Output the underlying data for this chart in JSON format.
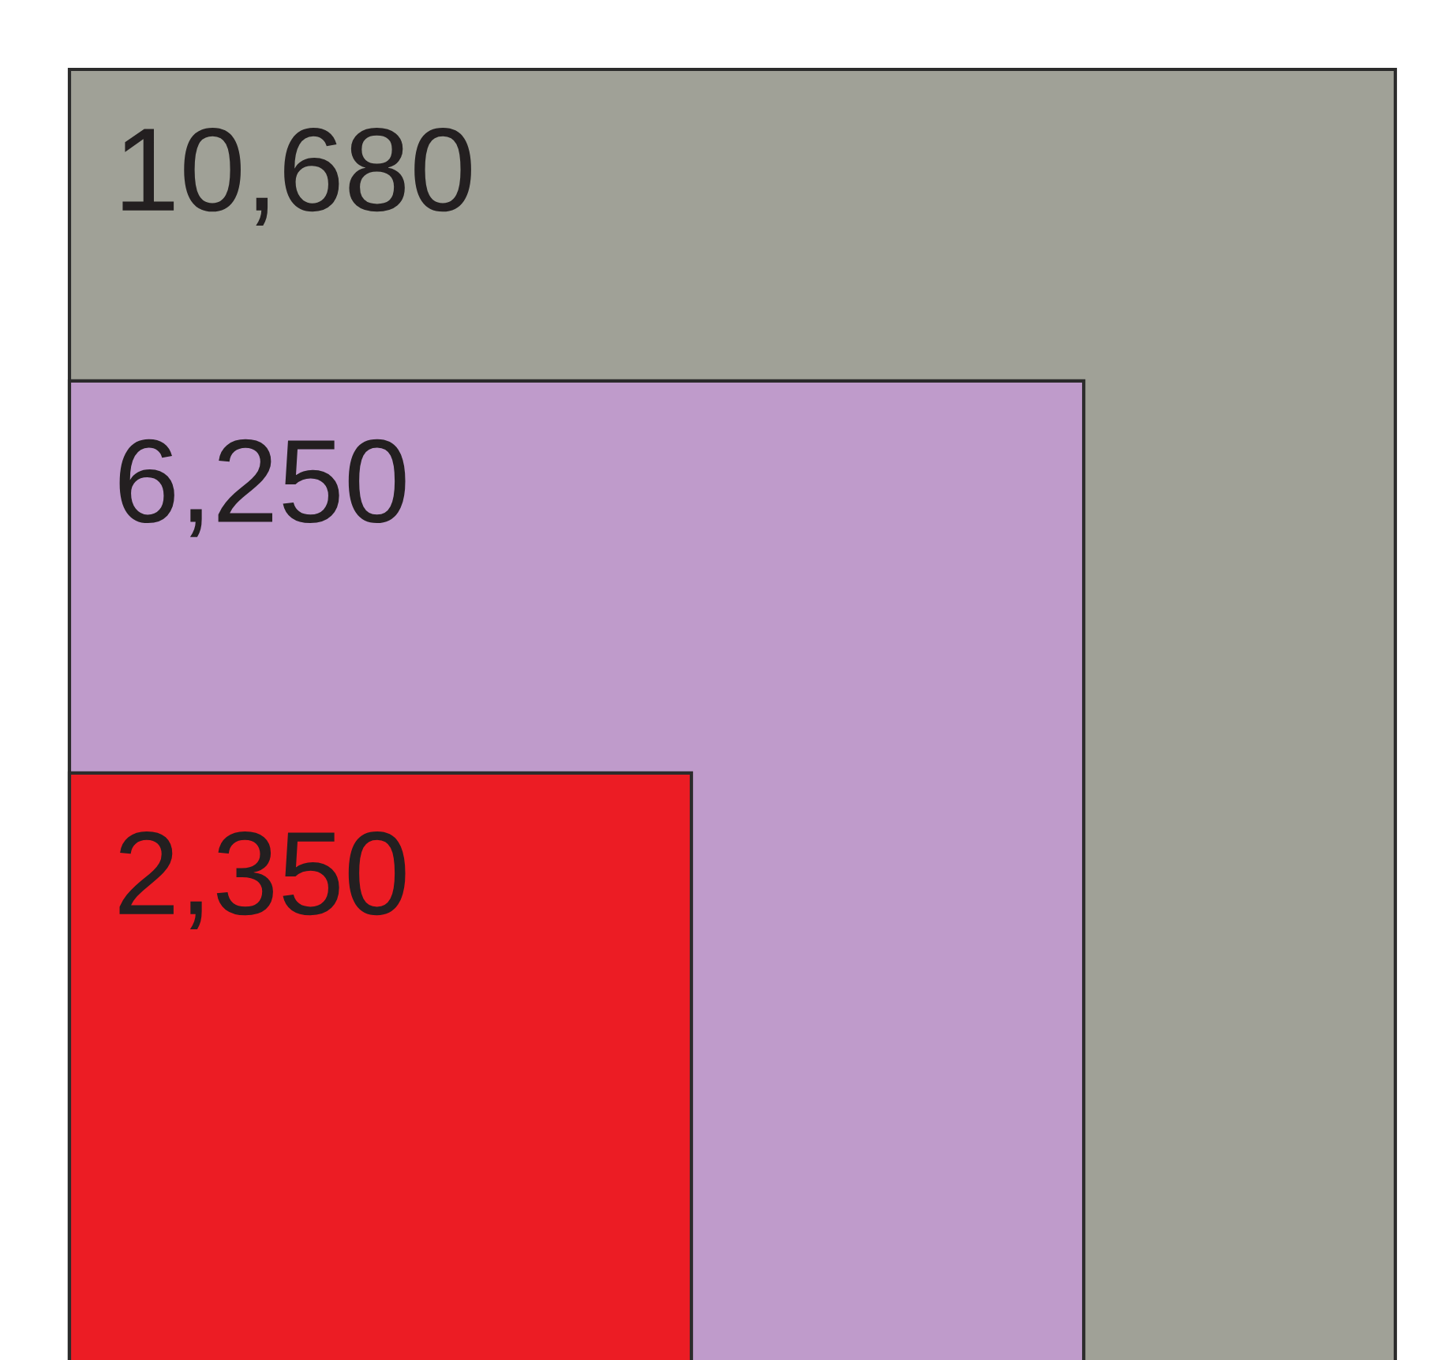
{
  "chart_data": {
    "type": "other",
    "values": [
      10680,
      6250,
      2350
    ],
    "colors": [
      "#a0a197",
      "#bf9bcb",
      "#ec1c24"
    ],
    "value_labels": [
      "10,680",
      "6,250",
      "2,350"
    ]
  }
}
